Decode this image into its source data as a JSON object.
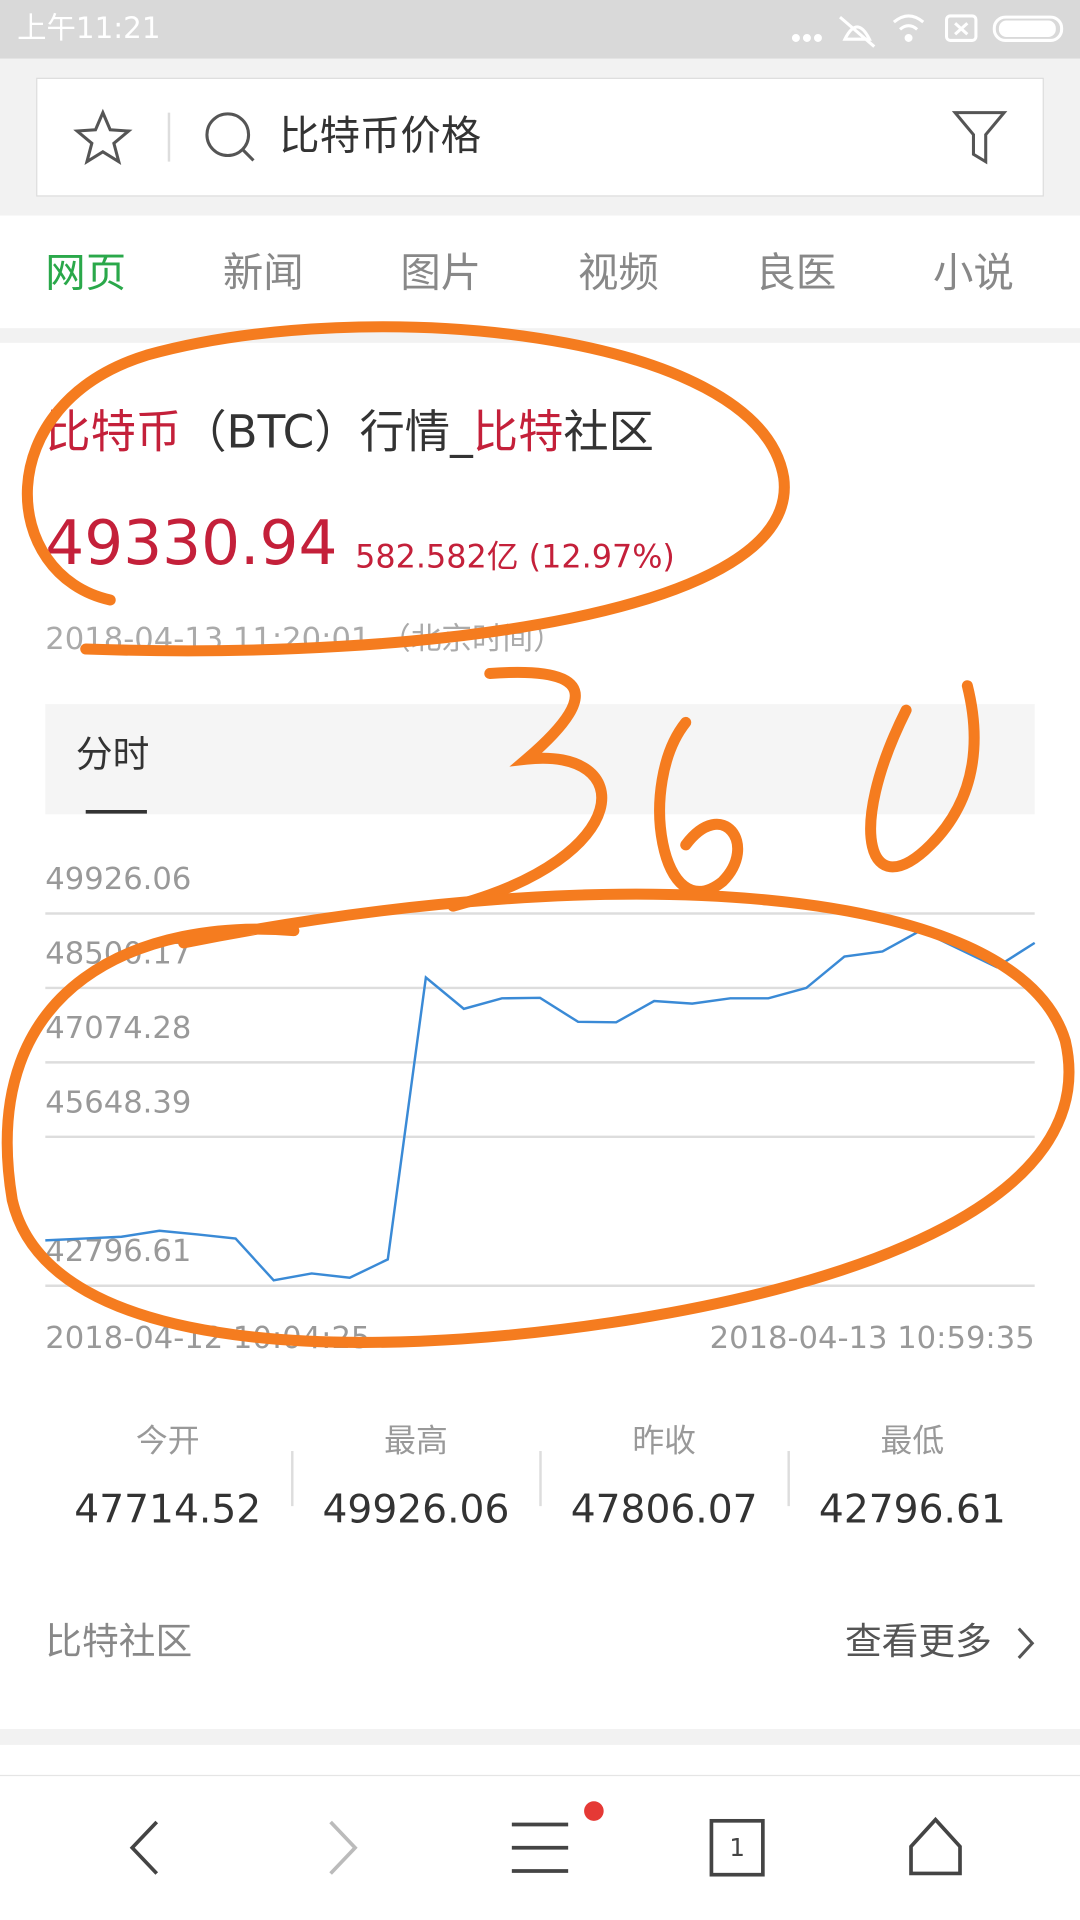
{
  "status_bar": {
    "time": "上午11:21"
  },
  "search": {
    "query": "比特币价格"
  },
  "tabs": [
    "网页",
    "新闻",
    "图片",
    "视频",
    "良医",
    "小说"
  ],
  "result": {
    "title_parts": [
      "比特币",
      "（BTC）行情_",
      "比特",
      "社区"
    ],
    "price": "49330.94",
    "change": "582.582亿 (12.97%)",
    "timestamp": "2018-04-13 11:20:01 （北京时间）",
    "chart_tab": "分时",
    "stats": [
      {
        "label": "今开",
        "value": "47714.52"
      },
      {
        "label": "最高",
        "value": "49926.06"
      },
      {
        "label": "昨收",
        "value": "47806.07"
      },
      {
        "label": "最低",
        "value": "42796.61"
      }
    ],
    "footer_left": "比特社区",
    "footer_right": "查看更多"
  },
  "chart_data": {
    "type": "line",
    "color": "#3a8ad6",
    "grid": true,
    "ylim": [
      42796.61,
      49926.06
    ],
    "yticks": [
      49926.06,
      48500.17,
      47074.28,
      45648.39,
      42796.61
    ],
    "x_start": "2018-04-12 10:04:25",
    "x_end": "2018-04-13 10:59:35",
    "values": [
      43665,
      43700,
      43735,
      43850,
      43780,
      43700,
      42900,
      43030,
      42950,
      43300,
      48700,
      48100,
      48300,
      48310,
      47850,
      47840,
      48250,
      48200,
      48300,
      48300,
      48500,
      49100,
      49200,
      49600,
      49250,
      48900,
      49363
    ]
  },
  "bottom_nav": {
    "tab_count": "1"
  }
}
